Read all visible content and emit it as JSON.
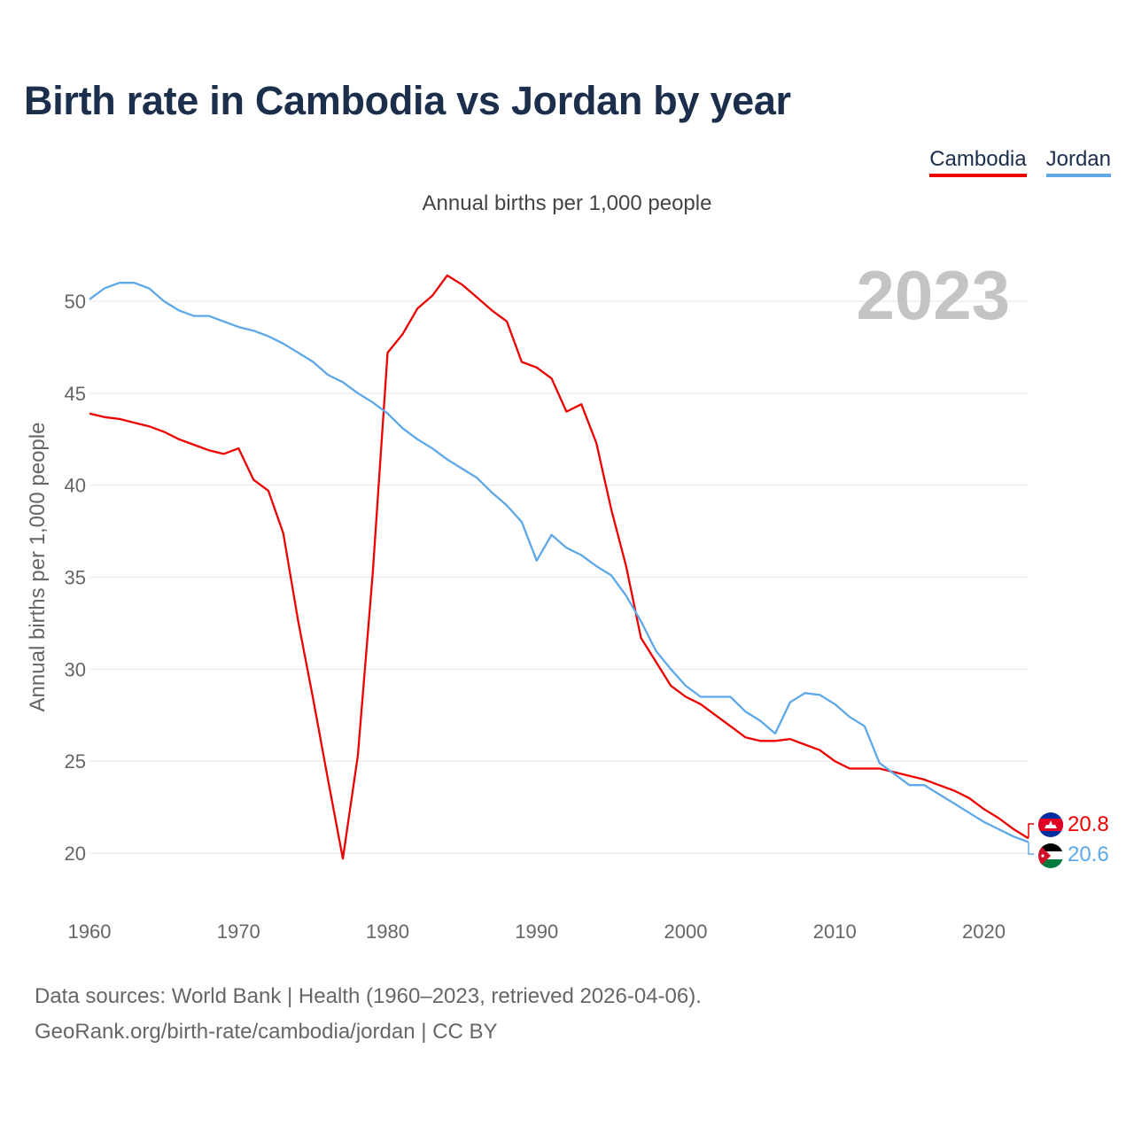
{
  "header": {
    "title": "Birth rate in Cambodia vs Jordan by year",
    "subtitle": "Annual births per 1,000 people"
  },
  "legend": [
    {
      "label": "Cambodia",
      "color": "#ee0000"
    },
    {
      "label": "Jordan",
      "color": "#5ea8e8"
    }
  ],
  "year_label": "2023",
  "end_labels": {
    "cambodia": "20.8",
    "jordan": "20.6"
  },
  "footer": {
    "line1": "Data sources: World Bank | Health (1960–2023, retrieved 2026-04-06).",
    "line2": "GeoRank.org/birth-rate/cambodia/jordan | CC BY"
  },
  "chart_data": {
    "type": "line",
    "title": "Birth rate in Cambodia vs Jordan by year",
    "ylabel": "Annual births per 1,000 people",
    "xlabel": "",
    "xlim": [
      1960,
      2023
    ],
    "ylim": [
      18,
      53
    ],
    "x_ticks": [
      "1960",
      "1970",
      "1980",
      "1990",
      "2000",
      "2010",
      "2020"
    ],
    "y_ticks": [
      "20",
      "25",
      "30",
      "35",
      "40",
      "45",
      "50"
    ],
    "grid": true,
    "x": [
      1960,
      1961,
      1962,
      1963,
      1964,
      1965,
      1966,
      1967,
      1968,
      1969,
      1970,
      1971,
      1972,
      1973,
      1974,
      1975,
      1976,
      1977,
      1978,
      1979,
      1980,
      1981,
      1982,
      1983,
      1984,
      1985,
      1986,
      1987,
      1988,
      1989,
      1990,
      1991,
      1992,
      1993,
      1994,
      1995,
      1996,
      1997,
      1998,
      1999,
      2000,
      2001,
      2002,
      2003,
      2004,
      2005,
      2006,
      2007,
      2008,
      2009,
      2010,
      2011,
      2012,
      2013,
      2014,
      2015,
      2016,
      2017,
      2018,
      2019,
      2020,
      2021,
      2022,
      2023
    ],
    "series": [
      {
        "name": "Cambodia",
        "color": "#ee0000",
        "values": [
          43.9,
          43.7,
          43.6,
          43.4,
          43.2,
          42.9,
          42.5,
          42.2,
          41.9,
          41.7,
          42.0,
          40.3,
          39.7,
          37.4,
          32.6,
          28.4,
          24.0,
          19.7,
          25.3,
          35.2,
          47.2,
          48.2,
          49.6,
          50.3,
          51.4,
          50.9,
          50.2,
          49.5,
          48.9,
          46.7,
          46.4,
          45.8,
          44.0,
          44.4,
          42.3,
          38.7,
          35.6,
          31.7,
          30.4,
          29.1,
          28.5,
          28.1,
          27.5,
          26.9,
          26.3,
          26.1,
          26.1,
          26.2,
          25.9,
          25.6,
          25.0,
          24.6,
          24.6,
          24.6,
          24.4,
          24.2,
          24.0,
          23.7,
          23.4,
          23.0,
          22.4,
          21.9,
          21.3,
          20.8
        ]
      },
      {
        "name": "Jordan",
        "color": "#5ea8e8",
        "values": [
          50.1,
          50.7,
          51.0,
          51.0,
          50.7,
          50.0,
          49.5,
          49.2,
          49.2,
          48.9,
          48.6,
          48.4,
          48.1,
          47.7,
          47.2,
          46.7,
          46.0,
          45.6,
          45.0,
          44.5,
          43.9,
          43.1,
          42.5,
          42.0,
          41.4,
          40.9,
          40.4,
          39.6,
          38.9,
          38.0,
          35.9,
          37.3,
          36.6,
          36.2,
          35.6,
          35.1,
          34.0,
          32.6,
          31.0,
          30.0,
          29.1,
          28.5,
          28.5,
          28.5,
          27.7,
          27.2,
          26.5,
          28.2,
          28.7,
          28.6,
          28.1,
          27.4,
          26.9,
          24.9,
          24.3,
          23.7,
          23.7,
          23.2,
          22.7,
          22.2,
          21.7,
          21.3,
          20.9,
          20.6
        ]
      }
    ]
  }
}
